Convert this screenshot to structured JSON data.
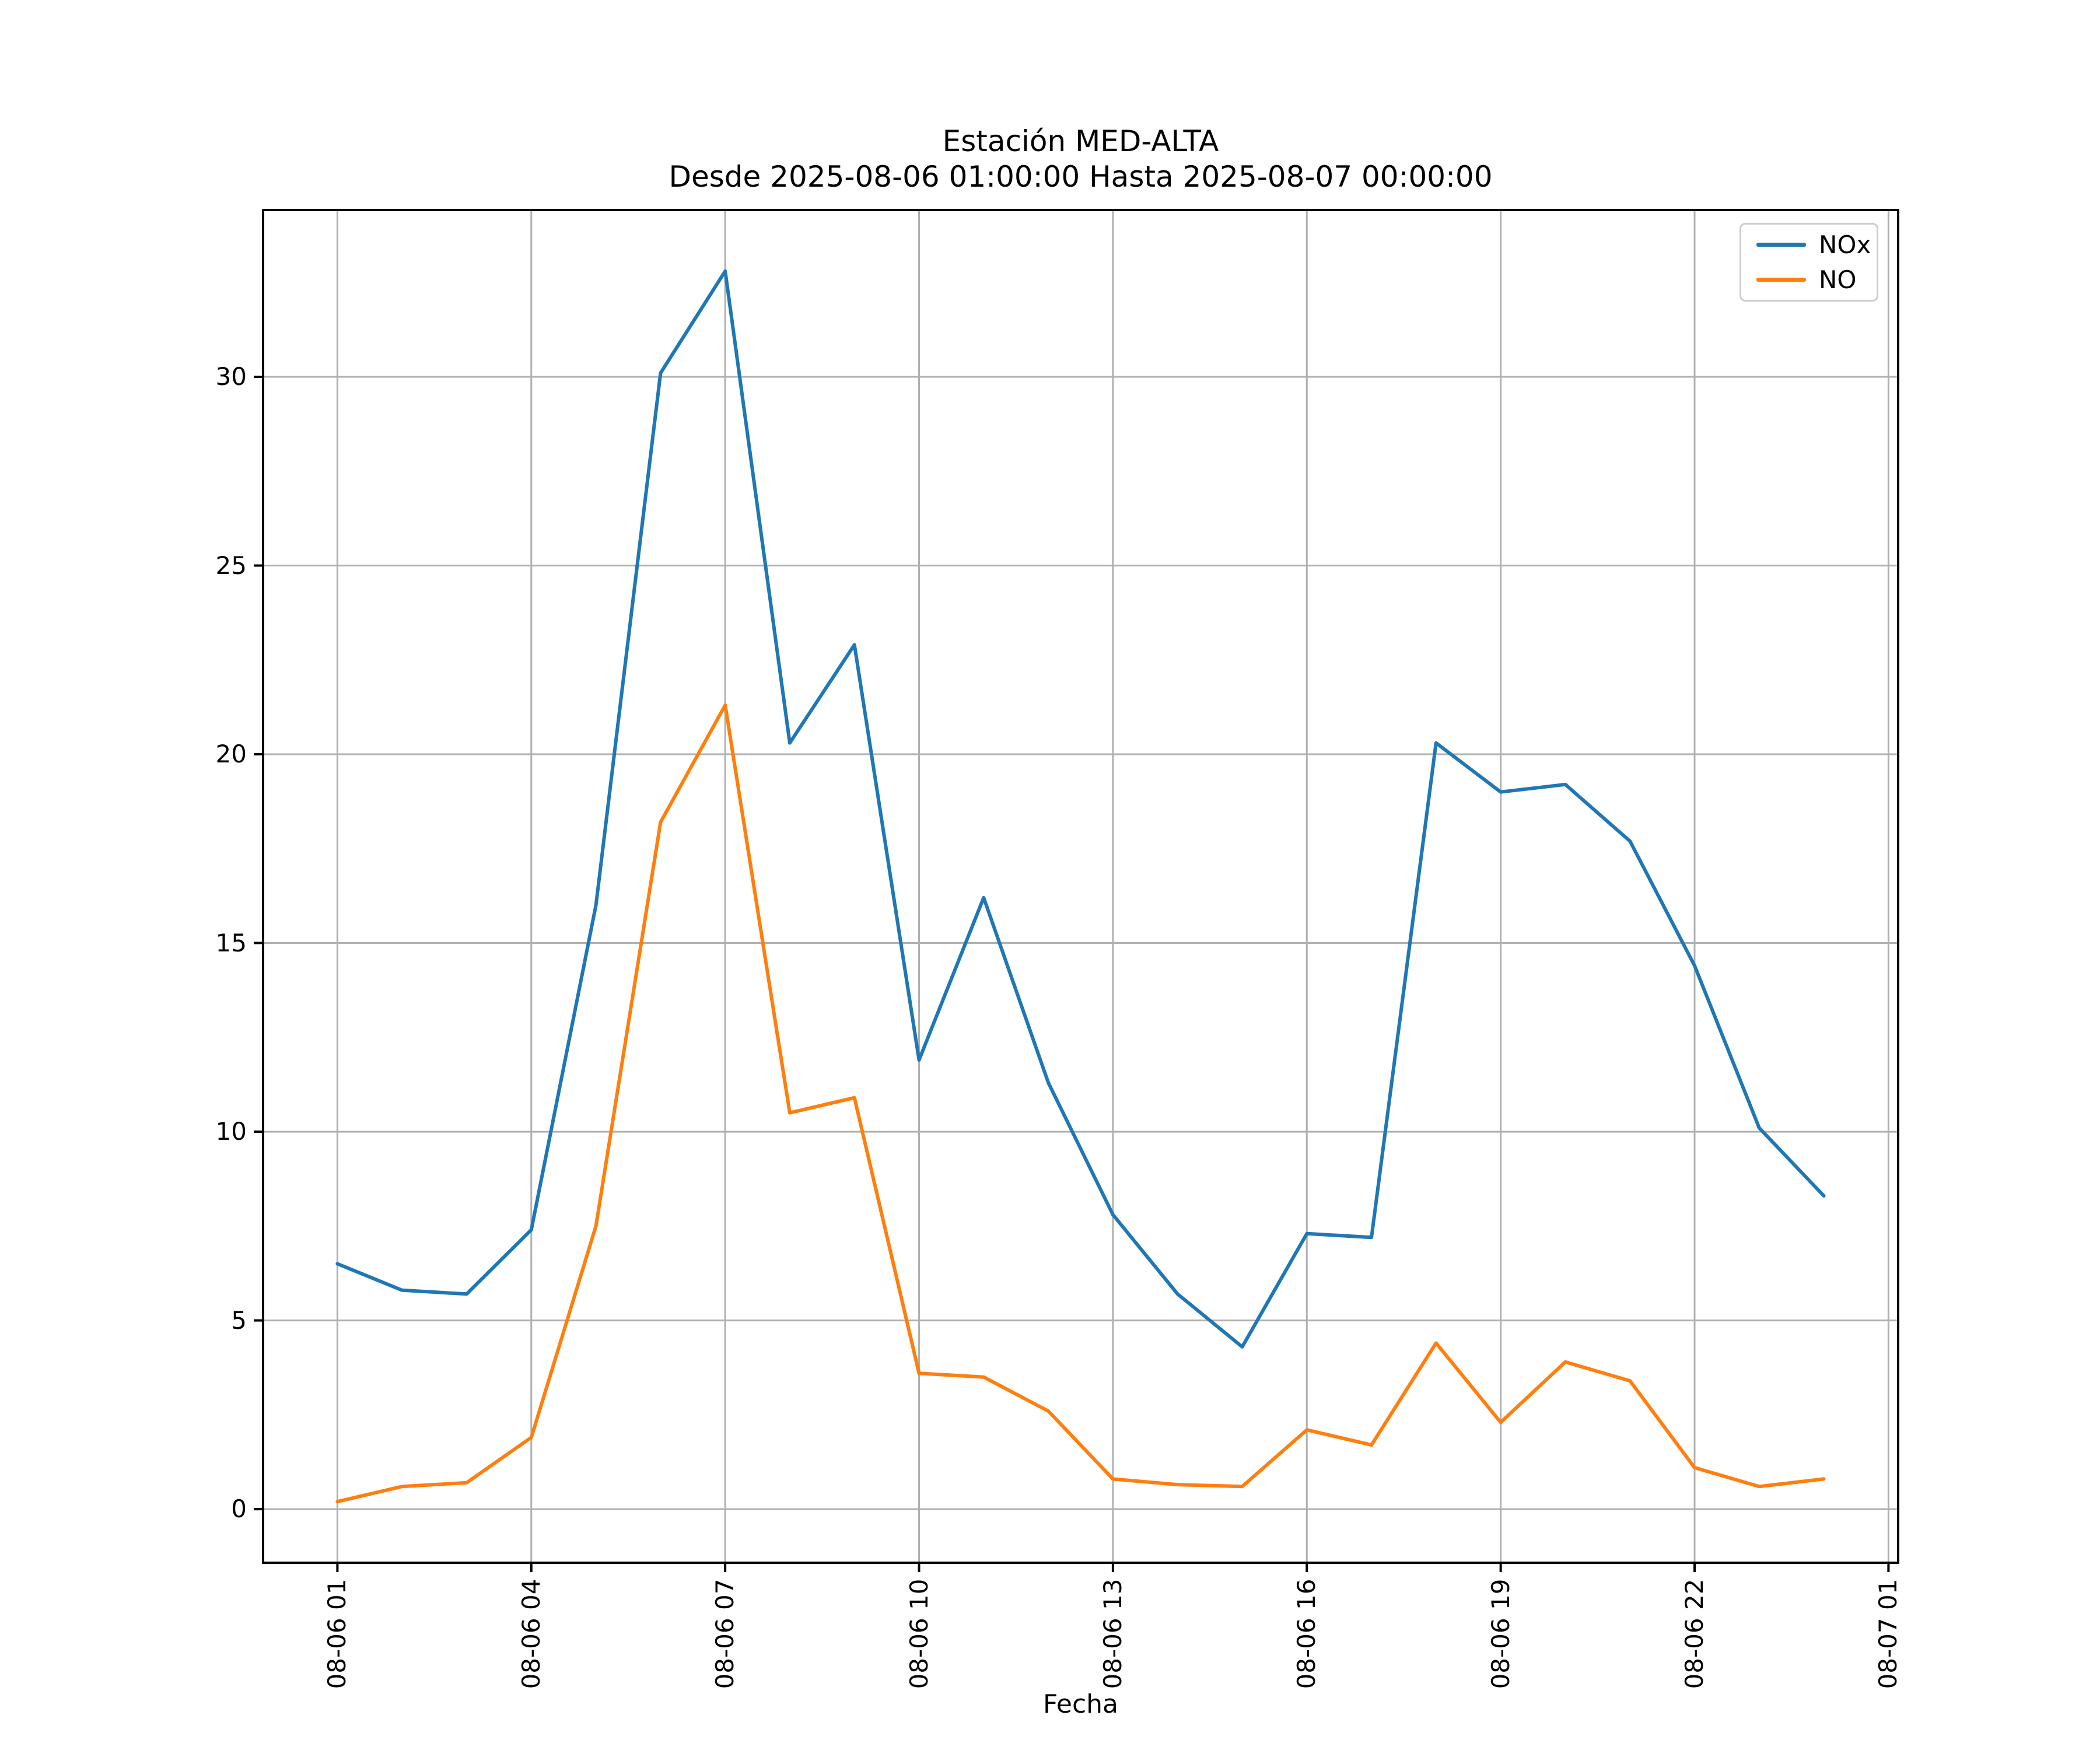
{
  "chart_data": {
    "type": "line",
    "title": "Estación MED-ALTA",
    "subtitle": "Desde 2025-08-06 01:00:00 Hasta 2025-08-07 00:00:00",
    "xlabel": "Fecha",
    "ylabel": "",
    "x": [
      "2025-08-06 01:00",
      "2025-08-06 02:00",
      "2025-08-06 03:00",
      "2025-08-06 04:00",
      "2025-08-06 05:00",
      "2025-08-06 06:00",
      "2025-08-06 07:00",
      "2025-08-06 08:00",
      "2025-08-06 09:00",
      "2025-08-06 10:00",
      "2025-08-06 11:00",
      "2025-08-06 12:00",
      "2025-08-06 13:00",
      "2025-08-06 14:00",
      "2025-08-06 15:00",
      "2025-08-06 16:00",
      "2025-08-06 17:00",
      "2025-08-06 18:00",
      "2025-08-06 19:00",
      "2025-08-06 20:00",
      "2025-08-06 21:00",
      "2025-08-06 22:00",
      "2025-08-06 23:00",
      "2025-08-07 00:00"
    ],
    "series": [
      {
        "name": "NOx",
        "color": "#1f77b4",
        "values": [
          6.5,
          5.8,
          5.7,
          7.4,
          16.0,
          30.1,
          32.8,
          20.3,
          22.9,
          11.9,
          16.2,
          11.3,
          7.8,
          5.7,
          4.3,
          7.3,
          7.2,
          20.3,
          19.0,
          19.2,
          17.7,
          14.4,
          10.1,
          8.3
        ]
      },
      {
        "name": "NO",
        "color": "#ff7f0e",
        "values": [
          0.2,
          0.6,
          0.7,
          1.9,
          7.5,
          18.2,
          21.3,
          10.5,
          10.9,
          3.6,
          3.5,
          2.6,
          0.8,
          0.65,
          0.6,
          2.1,
          1.7,
          4.4,
          2.3,
          3.9,
          3.4,
          1.1,
          0.6,
          0.8
        ]
      }
    ],
    "x_tick_labels": [
      "08-06 01",
      "08-06 04",
      "08-06 07",
      "08-06 10",
      "08-06 13",
      "08-06 16",
      "08-06 19",
      "08-06 22",
      "08-07 01"
    ],
    "x_tick_indices": [
      0,
      3,
      6,
      9,
      12,
      15,
      18,
      21,
      24
    ],
    "y_ticks": [
      0,
      5,
      10,
      15,
      20,
      25,
      30
    ],
    "xlim_index": [
      -1.15,
      24.15
    ],
    "ylim": [
      -1.42,
      34.42
    ],
    "grid": true,
    "legend_position": "upper right",
    "colors": {
      "grid": "#b0b0b0",
      "spine": "#000000",
      "text": "#000000",
      "legend_border": "#cccccc",
      "background": "#ffffff"
    }
  }
}
